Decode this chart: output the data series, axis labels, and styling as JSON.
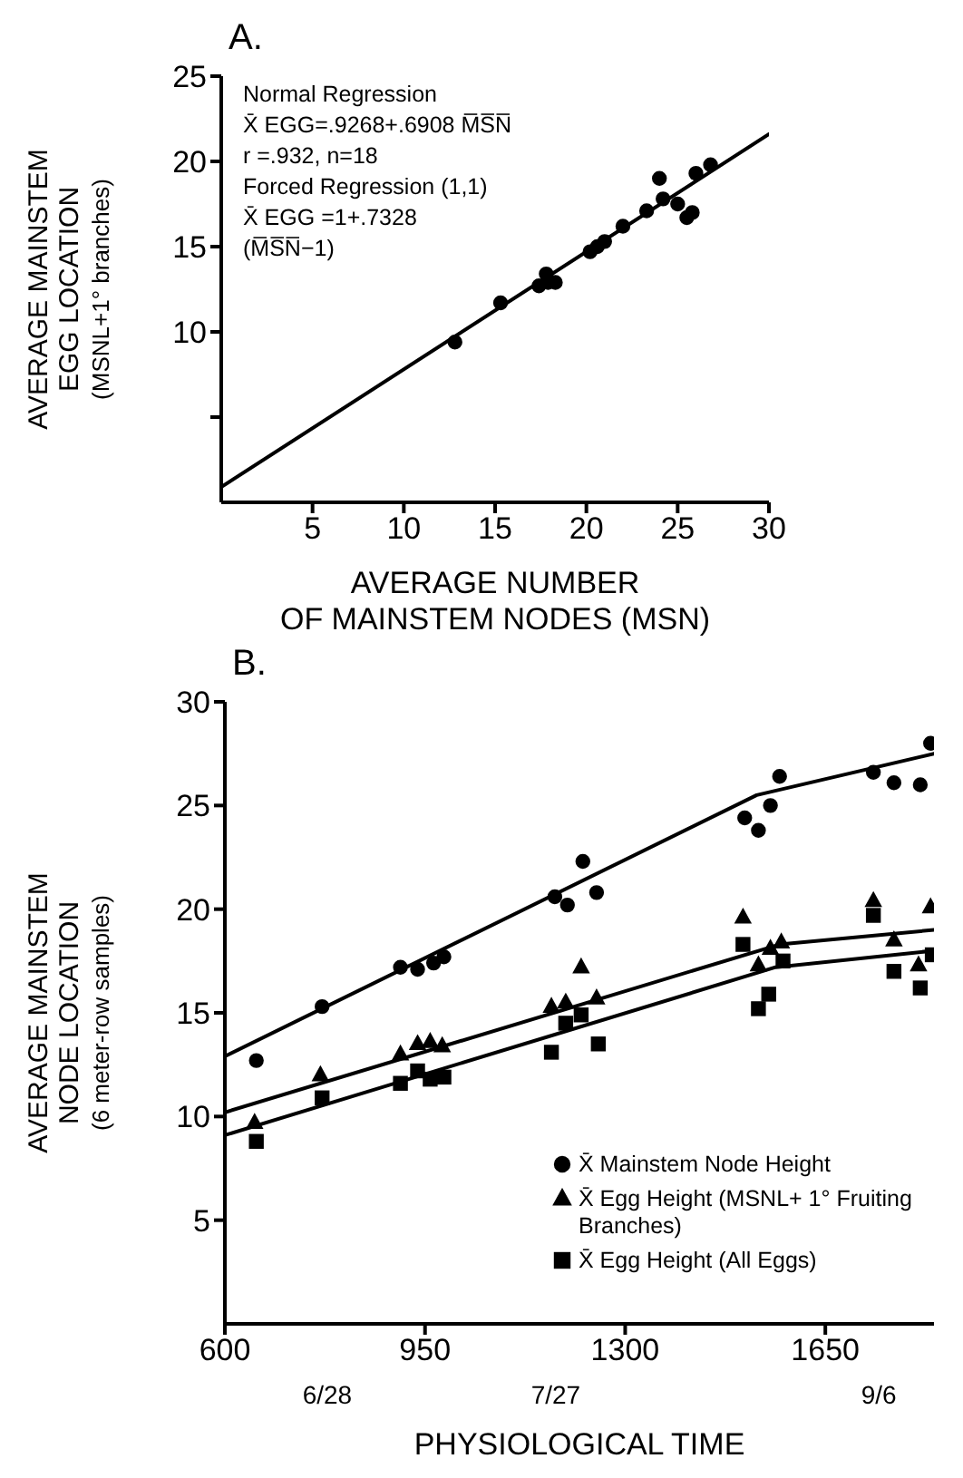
{
  "chart_data": [
    {
      "type": "scatter",
      "title": "A.",
      "xlabel": "AVERAGE NUMBER\nOF MAINSTEM NODES (MSN)",
      "ylabel": "AVERAGE MAINSTEM\nEGG LOCATION\n(MSNL+1° branches)",
      "xlim": [
        0,
        30
      ],
      "xticks": [
        5,
        10,
        15,
        20,
        25,
        30
      ],
      "ylim": [
        0,
        25
      ],
      "yticks": [
        {
          "value": 5,
          "label": null
        },
        10,
        15,
        20,
        25
      ],
      "marker": "circle",
      "annotations": [
        "Normal Regression",
        "X̄ EGG=.9268+.6908 M̅S̅N̅",
        "r =.932, n=18",
        "Forced Regression (1,1)",
        "X̄ EGG =1+.7328",
        "(M̅S̅N̅−1)"
      ],
      "x": [
        12.8,
        15.3,
        17.4,
        17.8,
        18.3,
        17.9,
        20.2,
        20.6,
        21.0,
        22.0,
        23.3,
        24.0,
        24.2,
        25.0,
        25.5,
        25.8,
        26.0,
        26.8
      ],
      "series": [
        {
          "color": "#000000",
          "values": [
            9.4,
            11.7,
            12.7,
            13.4,
            12.9,
            12.9,
            14.7,
            15.0,
            15.3,
            16.2,
            17.1,
            19.0,
            17.8,
            17.5,
            16.7,
            17.0,
            19.3,
            19.8
          ]
        },
        {
          "type": "line",
          "color": "#000000",
          "marker": "none",
          "x": [
            0,
            30
          ],
          "values": [
            0.9,
            21.6
          ]
        }
      ]
    },
    {
      "type": "scatter",
      "title": "B.",
      "xlabel": "PHYSIOLOGICAL TIME",
      "ylabel": "AVERAGE MAINSTEM\nNODE LOCATION\n(6 meter-row samples)",
      "xlim": [
        600,
        1840
      ],
      "xticks": [
        600,
        950,
        1300,
        1650
      ],
      "x2lim": [
        "--06-15",
        "--09-13"
      ],
      "x2ticks": [
        {
          "value": "--06-28",
          "label": "6/28"
        },
        {
          "value": "--07-27",
          "label": "7/27"
        },
        {
          "value": "--09-06",
          "label": "9/6"
        }
      ],
      "ylim": [
        0,
        30
      ],
      "yticks": [
        5,
        10,
        15,
        20,
        25,
        30
      ],
      "legend": "bottom right",
      "series": [
        {
          "name": "X̄ Mainstem Node Height",
          "color": "#000000",
          "marker": "circle",
          "x": [
            655,
            770,
            907,
            937,
            965,
            983,
            1177,
            1199,
            1226,
            1250,
            1509,
            1533,
            1554,
            1570,
            1734,
            1770,
            1816,
            1834
          ],
          "values": [
            12.7,
            15.3,
            17.2,
            17.1,
            17.4,
            17.7,
            20.6,
            20.2,
            22.3,
            20.8,
            24.4,
            23.8,
            25.0,
            26.4,
            26.6,
            26.1,
            26.0,
            28.0
          ]
        },
        {
          "name": "X̄ Egg Height (MSNL+ 1° Fruiting Branches)",
          "color": "#000000",
          "marker": "triangle",
          "x": [
            652,
            767,
            907,
            937,
            959,
            980,
            1171,
            1196,
            1223,
            1250,
            1506,
            1533,
            1554,
            1573,
            1734,
            1770,
            1813,
            1834
          ],
          "values": [
            9.7,
            12.0,
            13.0,
            13.5,
            13.6,
            13.4,
            15.3,
            15.5,
            17.2,
            15.7,
            19.6,
            17.3,
            18.1,
            18.4,
            20.4,
            18.5,
            17.3,
            20.1
          ]
        },
        {
          "name": "X̄ Egg Height (All Eggs)",
          "color": "#000000",
          "marker": "square",
          "x": [
            655,
            770,
            907,
            937,
            959,
            983,
            1171,
            1196,
            1223,
            1253,
            1506,
            1533,
            1551,
            1576,
            1734,
            1770,
            1816,
            1837
          ],
          "values": [
            8.8,
            10.9,
            11.6,
            12.2,
            11.8,
            11.9,
            13.1,
            14.5,
            14.9,
            13.5,
            18.3,
            15.2,
            15.9,
            17.5,
            19.7,
            17.0,
            16.2,
            17.8
          ]
        },
        {
          "type": "line",
          "color": "#000000",
          "marker": "none",
          "x": [
            600,
            1530,
            1840
          ],
          "values": [
            12.9,
            25.5,
            27.5
          ]
        },
        {
          "type": "line",
          "color": "#000000",
          "marker": "none",
          "x": [
            600,
            1570,
            1840
          ],
          "values": [
            10.2,
            18.3,
            19.0
          ]
        },
        {
          "type": "line",
          "color": "#000000",
          "marker": "none",
          "x": [
            600,
            1563,
            1840
          ],
          "values": [
            9.1,
            17.2,
            18.0
          ]
        }
      ]
    }
  ]
}
